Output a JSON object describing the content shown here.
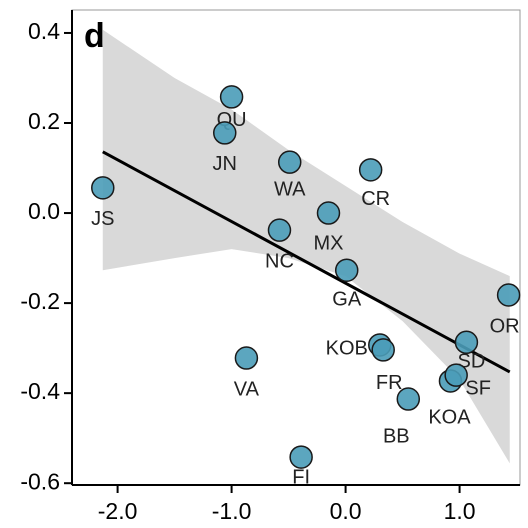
{
  "chart_data": {
    "type": "scatter",
    "panel_label": "d",
    "labels": [
      "QU",
      "JN",
      "WA",
      "CR",
      "JS",
      "MX",
      "NC",
      "GA",
      "OR",
      "SD",
      "KOB",
      "FR",
      "VA",
      "KOA",
      "SF",
      "BB",
      "FI"
    ],
    "x": [
      -1.0,
      -1.06,
      -0.49,
      0.22,
      -2.13,
      -0.15,
      -0.58,
      0.01,
      1.43,
      1.06,
      0.3,
      0.33,
      -0.87,
      0.92,
      0.97,
      0.55,
      -0.39
    ],
    "y": [
      0.258,
      0.178,
      0.113,
      0.096,
      0.056,
      0.0,
      -0.038,
      -0.127,
      -0.182,
      -0.287,
      -0.293,
      -0.304,
      -0.322,
      -0.373,
      -0.36,
      -0.413,
      -0.542
    ],
    "color": "#4a9cb8",
    "fit": {
      "x": [
        -2.13,
        1.44
      ],
      "y": [
        0.136,
        -0.353
      ]
    },
    "band": {
      "x": [
        -2.13,
        -1.5,
        -1.0,
        -0.5,
        0.0,
        0.5,
        1.0,
        1.44
      ],
      "upper": [
        0.407,
        0.3,
        0.23,
        0.14,
        0.06,
        -0.02,
        -0.09,
        -0.14
      ],
      "lower": [
        -0.127,
        -0.1,
        -0.08,
        -0.1,
        -0.14,
        -0.24,
        -0.37,
        -0.556
      ]
    },
    "xlim": [
      -2.4,
      1.53
    ],
    "ylim": [
      -0.604,
      0.451
    ],
    "xticks": [
      {
        "value": -2.0,
        "label": "-2.0"
      },
      {
        "value": -1.0,
        "label": "-1.0"
      },
      {
        "value": 0.0,
        "label": "0.0"
      },
      {
        "value": 1.0,
        "label": "1.0"
      }
    ],
    "yticks": [
      -0.6,
      -0.4,
      -0.2,
      {
        "value": 0.0,
        "label": "0.0"
      },
      0.2,
      0.4
    ]
  }
}
